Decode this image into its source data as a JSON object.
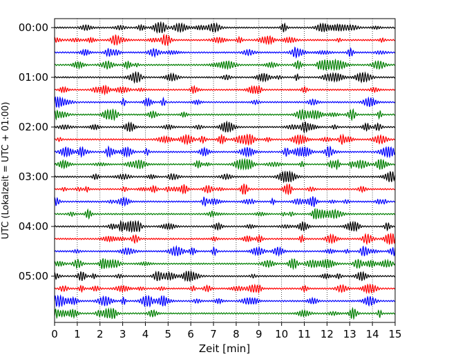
{
  "chart_data": {
    "type": "line",
    "title": "",
    "xlabel": "Zeit  [min]",
    "ylabel": "UTC (Lokalzeit = UTC + 01:00)",
    "xlim": [
      0,
      15
    ],
    "x_ticks": [
      0,
      1,
      2,
      3,
      4,
      5,
      6,
      7,
      8,
      9,
      10,
      11,
      12,
      13,
      14,
      15
    ],
    "x_grid": "dotted vertical lines at every minute",
    "y_tick_labels": [
      "00:00",
      "01:00",
      "02:00",
      "03:00",
      "04:00",
      "05:00"
    ],
    "trace_interval_minutes": 15,
    "trace_count": 24,
    "trace_colors": [
      "#000000",
      "#ff0000",
      "#0000ff",
      "#007f00"
    ],
    "trace_starts": [
      "00:00",
      "00:15",
      "00:30",
      "00:45",
      "01:00",
      "01:15",
      "01:30",
      "01:45",
      "02:00",
      "02:15",
      "02:30",
      "02:45",
      "03:00",
      "03:15",
      "03:30",
      "03:45",
      "04:00",
      "04:15",
      "04:30",
      "04:45",
      "05:00",
      "05:15",
      "05:30",
      "05:45"
    ]
  }
}
